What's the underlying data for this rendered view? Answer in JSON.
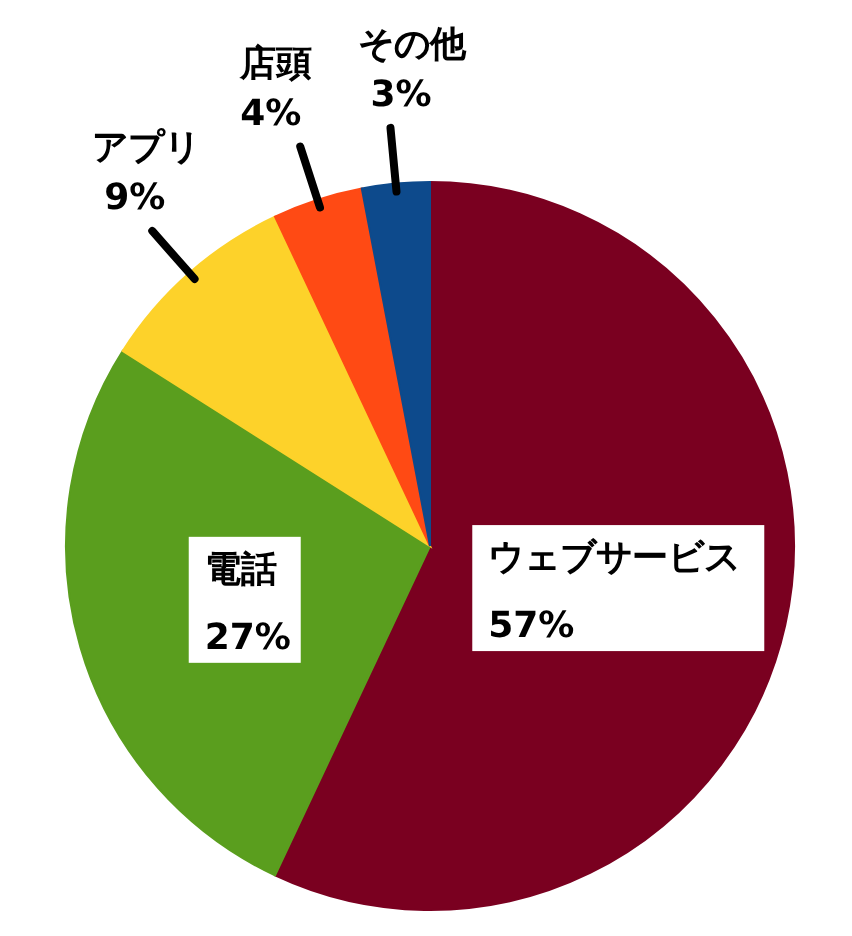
{
  "chart_data": {
    "type": "pie",
    "categories": [
      "ウェブサービス",
      "電話",
      "アプリ",
      "店頭",
      "その他"
    ],
    "values": [
      57,
      27,
      9,
      4,
      3
    ],
    "colors": [
      "#7a0020",
      "#5a9e1e",
      "#fdd22a",
      "#ff4a14",
      "#0d4a8c"
    ],
    "value_labels": [
      "57%",
      "27%",
      "9%",
      "4%",
      "3%"
    ]
  }
}
